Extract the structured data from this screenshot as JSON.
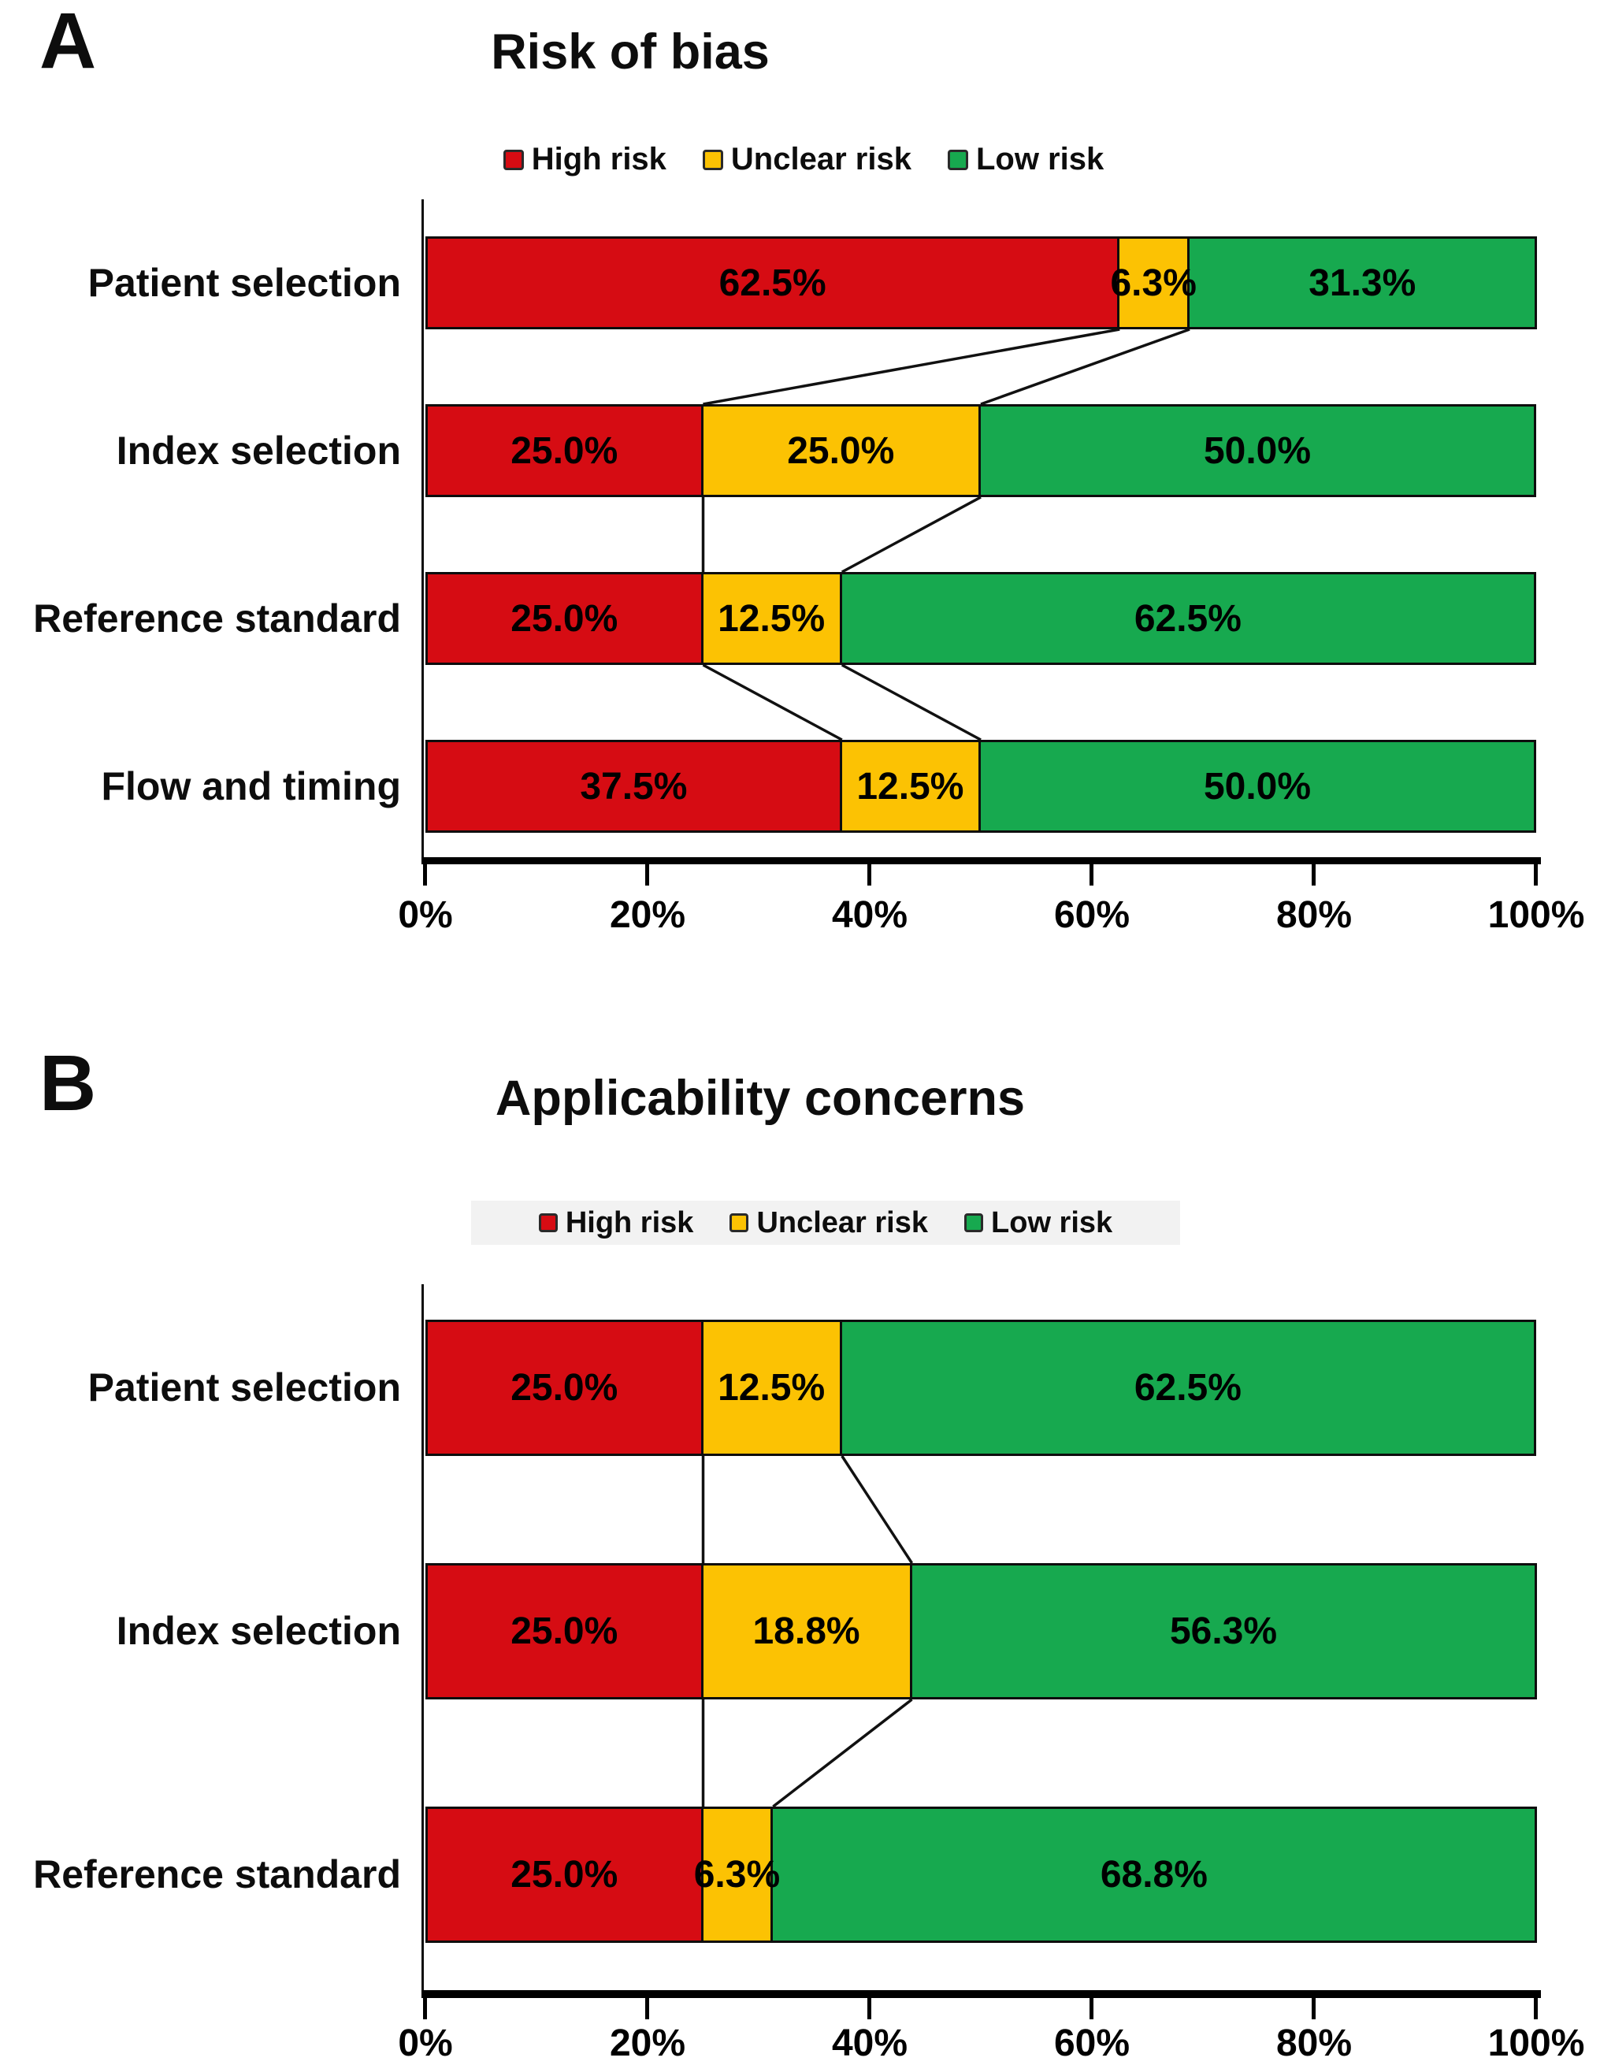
{
  "figure": {
    "panels": [
      {
        "panel_label": "A",
        "title": "Risk of bias",
        "legend": [
          {
            "label": "High risk",
            "color": "#d60c13"
          },
          {
            "label": "Unclear risk",
            "color": "#fcc203"
          },
          {
            "label": "Low risk",
            "color": "#17a94f"
          }
        ],
        "x_ticks": [
          "0%",
          "20%",
          "40%",
          "60%",
          "80%",
          "100%"
        ],
        "rows": [
          {
            "category": "Patient selection",
            "segments": [
              {
                "series": "High risk",
                "value": 62.5,
                "label": "62.5%",
                "color": "#d60c13"
              },
              {
                "series": "Unclear risk",
                "value": 6.3,
                "label": "6.3%",
                "color": "#fcc203"
              },
              {
                "series": "Low risk",
                "value": 31.3,
                "label": "31.3%",
                "color": "#17a94f"
              }
            ]
          },
          {
            "category": "Index selection",
            "segments": [
              {
                "series": "High risk",
                "value": 25.0,
                "label": "25.0%",
                "color": "#d60c13"
              },
              {
                "series": "Unclear risk",
                "value": 25.0,
                "label": "25.0%",
                "color": "#fcc203"
              },
              {
                "series": "Low risk",
                "value": 50.0,
                "label": "50.0%",
                "color": "#17a94f"
              }
            ]
          },
          {
            "category": "Reference standard",
            "segments": [
              {
                "series": "High risk",
                "value": 25.0,
                "label": "25.0%",
                "color": "#d60c13"
              },
              {
                "series": "Unclear risk",
                "value": 12.5,
                "label": "12.5%",
                "color": "#fcc203"
              },
              {
                "series": "Low risk",
                "value": 62.5,
                "label": "62.5%",
                "color": "#17a94f"
              }
            ]
          },
          {
            "category": "Flow and timing",
            "segments": [
              {
                "series": "High risk",
                "value": 37.5,
                "label": "37.5%",
                "color": "#d60c13"
              },
              {
                "series": "Unclear risk",
                "value": 12.5,
                "label": "12.5%",
                "color": "#fcc203"
              },
              {
                "series": "Low risk",
                "value": 50.0,
                "label": "50.0%",
                "color": "#17a94f"
              }
            ]
          }
        ],
        "connectors": [
          {
            "gap": 0,
            "from_pct": 62.5,
            "to_pct": 25.0
          },
          {
            "gap": 0,
            "from_pct": 68.8,
            "to_pct": 50.0
          },
          {
            "gap": 1,
            "from_pct": 25.0,
            "to_pct": 25.0
          },
          {
            "gap": 1,
            "from_pct": 50.0,
            "to_pct": 37.5
          },
          {
            "gap": 2,
            "from_pct": 25.0,
            "to_pct": 37.5
          },
          {
            "gap": 2,
            "from_pct": 37.5,
            "to_pct": 50.0
          }
        ]
      },
      {
        "panel_label": "B",
        "title": "Applicability concerns",
        "legend": [
          {
            "label": "High risk",
            "color": "#d60c13"
          },
          {
            "label": "Unclear risk",
            "color": "#fcc203"
          },
          {
            "label": "Low risk",
            "color": "#17a94f"
          }
        ],
        "x_ticks": [
          "0%",
          "20%",
          "40%",
          "60%",
          "80%",
          "100%"
        ],
        "rows": [
          {
            "category": "Patient selection",
            "segments": [
              {
                "series": "High risk",
                "value": 25.0,
                "label": "25.0%",
                "color": "#d60c13"
              },
              {
                "series": "Unclear risk",
                "value": 12.5,
                "label": "12.5%",
                "color": "#fcc203"
              },
              {
                "series": "Low risk",
                "value": 62.5,
                "label": "62.5%",
                "color": "#17a94f"
              }
            ]
          },
          {
            "category": "Index selection",
            "segments": [
              {
                "series": "High risk",
                "value": 25.0,
                "label": "25.0%",
                "color": "#d60c13"
              },
              {
                "series": "Unclear risk",
                "value": 18.8,
                "label": "18.8%",
                "color": "#fcc203"
              },
              {
                "series": "Low risk",
                "value": 56.3,
                "label": "56.3%",
                "color": "#17a94f"
              }
            ]
          },
          {
            "category": "Reference standard",
            "segments": [
              {
                "series": "High risk",
                "value": 25.0,
                "label": "25.0%",
                "color": "#d60c13"
              },
              {
                "series": "Unclear risk",
                "value": 6.3,
                "label": "6.3%",
                "color": "#fcc203"
              },
              {
                "series": "Low risk",
                "value": 68.8,
                "label": "68.8%",
                "color": "#17a94f"
              }
            ]
          }
        ],
        "connectors": [
          {
            "gap": 0,
            "from_pct": 25.0,
            "to_pct": 25.0
          },
          {
            "gap": 0,
            "from_pct": 37.5,
            "to_pct": 43.8
          },
          {
            "gap": 1,
            "from_pct": 25.0,
            "to_pct": 25.0
          },
          {
            "gap": 1,
            "from_pct": 43.8,
            "to_pct": 31.3
          }
        ]
      }
    ]
  },
  "chart_data": [
    {
      "type": "bar",
      "orientation": "horizontal",
      "stacked": true,
      "title": "Risk of bias",
      "categories": [
        "Patient selection",
        "Index selection",
        "Reference standard",
        "Flow and timing"
      ],
      "series": [
        {
          "name": "High risk",
          "color": "#d60c13",
          "values": [
            62.5,
            25.0,
            25.0,
            37.5
          ]
        },
        {
          "name": "Unclear risk",
          "color": "#fcc203",
          "values": [
            6.3,
            25.0,
            12.5,
            12.5
          ]
        },
        {
          "name": "Low risk",
          "color": "#17a94f",
          "values": [
            31.3,
            50.0,
            62.5,
            50.0
          ]
        }
      ],
      "data_labels": [
        [
          "62.5%",
          "6.3%",
          "31.3%"
        ],
        [
          "25.0%",
          "25.0%",
          "50.0%"
        ],
        [
          "25.0%",
          "12.5%",
          "62.5%"
        ],
        [
          "37.5%",
          "12.5%",
          "50.0%"
        ]
      ],
      "xlim": [
        0,
        100
      ],
      "x_tick_labels": [
        "0%",
        "20%",
        "40%",
        "60%",
        "80%",
        "100%"
      ],
      "legend_position": "top",
      "grid": false
    },
    {
      "type": "bar",
      "orientation": "horizontal",
      "stacked": true,
      "title": "Applicability concerns",
      "categories": [
        "Patient selection",
        "Index selection",
        "Reference standard"
      ],
      "series": [
        {
          "name": "High risk",
          "color": "#d60c13",
          "values": [
            25.0,
            25.0,
            25.0
          ]
        },
        {
          "name": "Unclear risk",
          "color": "#fcc203",
          "values": [
            12.5,
            18.8,
            6.3
          ]
        },
        {
          "name": "Low risk",
          "color": "#17a94f",
          "values": [
            62.5,
            56.3,
            68.8
          ]
        }
      ],
      "data_labels": [
        [
          "25.0%",
          "12.5%",
          "62.5%"
        ],
        [
          "25.0%",
          "18.8%",
          "56.3%"
        ],
        [
          "25.0%",
          "6.3%",
          "68.8%"
        ]
      ],
      "xlim": [
        0,
        100
      ],
      "x_tick_labels": [
        "0%",
        "20%",
        "40%",
        "60%",
        "80%",
        "100%"
      ],
      "legend_position": "top",
      "grid": false
    }
  ]
}
